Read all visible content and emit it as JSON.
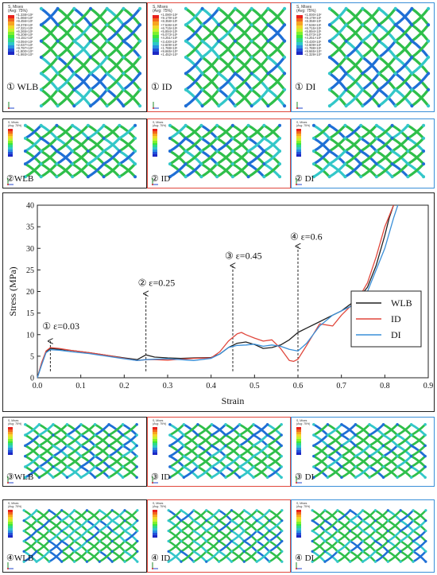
{
  "colors": {
    "black": "#222222",
    "red": "#e0473c",
    "blue": "#3a8fd8",
    "lattice_green": "#2fbf4a",
    "lattice_blue": "#1f6fd6",
    "lattice_cyan": "#33c7c9"
  },
  "contour_legend_colors": [
    "#e8221c",
    "#f2661f",
    "#f7a422",
    "#f2d52a",
    "#c9f02c",
    "#7ff02d",
    "#3de63b",
    "#2fd88a",
    "#2fc7c9",
    "#2b8fe0",
    "#2451d8",
    "#1d28c4"
  ],
  "rows": [
    {
      "id": "row1",
      "panels": [
        {
          "label": "① WLB",
          "legend_title": "S, Mises\n(Avg: 75%)",
          "legend_values": [
            "+1.338×10²",
            "+1.066×10²",
            "+9.456×10¹",
            "+8.378×10¹",
            "+7.321×10¹",
            "+6.265×10¹",
            "+5.208×10¹",
            "+4.151×10¹",
            "+3.094×10¹",
            "+2.037×10¹",
            "+9.797×10⁰",
            "+1.800×10⁰",
            "+1.993×10⁰"
          ]
        },
        {
          "label": "① ID",
          "legend_title": "S, Mises\n(Avg: 75%)",
          "legend_values": [
            "+1.090×10²",
            "+9.179×10¹",
            "+8.358×10¹",
            "+7.536×10¹",
            "+6.715×10¹",
            "+5.894×10¹",
            "+5.073×10¹",
            "+4.251×10¹",
            "+3.430×10¹",
            "+2.609×10¹",
            "+1.788×10¹",
            "+9.665×10⁰",
            "+1.452×10⁰"
          ]
        },
        {
          "label": "① DI",
          "legend_title": "S, Mises\n(Avg: 75%)",
          "legend_values": [
            "+1.000×10²",
            "+9.179×10¹",
            "+8.358×10¹",
            "+7.536×10¹",
            "+6.715×10¹",
            "+5.894×10¹",
            "+5.073×10¹",
            "+4.251×10¹",
            "+3.430×10¹",
            "+2.609×10¹",
            "+1.788×10¹",
            "+9.665×10⁰",
            "+1.329×10⁰"
          ]
        }
      ]
    },
    {
      "id": "row2",
      "panels": [
        {
          "label": "②WLB",
          "legend_title": "S, Mises\n(Avg: 75%)"
        },
        {
          "label": "② ID",
          "legend_title": "S, Mises\n(Avg: 75%)"
        },
        {
          "label": "② DI",
          "legend_title": "S, Mises\n(Avg: 75%)"
        }
      ]
    },
    {
      "id": "row3",
      "panels": [
        {
          "label": "③WLB",
          "legend_title": "S, Mises\n(Avg: 75%)"
        },
        {
          "label": "③ ID",
          "legend_title": "S, Mises\n(Avg: 75%)"
        },
        {
          "label": "③ DI",
          "legend_title": "S, Mises\n(Avg: 75%)"
        }
      ]
    },
    {
      "id": "row4",
      "panels": [
        {
          "label": "④WLB",
          "legend_title": "S, Mises\n(Avg: 75%)"
        },
        {
          "label": "④ ID",
          "legend_title": "S, Mises\n(Avg: 75%)"
        },
        {
          "label": "④ DI",
          "legend_title": "S, Mises\n(Avg: 75%)"
        }
      ]
    }
  ],
  "chart_data": {
    "type": "line",
    "xlabel": "Strain",
    "ylabel": "Stress (MPa)",
    "xlim": [
      0,
      0.9
    ],
    "ylim": [
      0,
      40
    ],
    "xticks": [
      0.0,
      0.1,
      0.2,
      0.3,
      0.4,
      0.5,
      0.6,
      0.7,
      0.8,
      0.9
    ],
    "xtick_labels": [
      "0.0",
      "0.1",
      "0.2",
      "0.3",
      "0.4",
      "0.5",
      "0.6",
      "0.7",
      "0.8",
      "0.9"
    ],
    "yticks": [
      0,
      5,
      10,
      15,
      20,
      25,
      30,
      35,
      40
    ],
    "ytick_labels": [
      "0",
      "5",
      "10",
      "15",
      "20",
      "25",
      "30",
      "35",
      "40"
    ],
    "grid": false,
    "legend_position": "right-middle",
    "annotations": [
      {
        "text": "① ε=0.03",
        "x": 0.03
      },
      {
        "text": "② ε=0.25",
        "x": 0.25
      },
      {
        "text": "③ ε=0.45",
        "x": 0.45
      },
      {
        "text": "④ ε=0.6",
        "x": 0.6
      }
    ],
    "series": [
      {
        "name": "WLB",
        "color": "#222222",
        "x": [
          0.0,
          0.01,
          0.02,
          0.03,
          0.05,
          0.08,
          0.12,
          0.16,
          0.2,
          0.23,
          0.25,
          0.27,
          0.3,
          0.33,
          0.36,
          0.4,
          0.42,
          0.44,
          0.46,
          0.48,
          0.5,
          0.52,
          0.54,
          0.56,
          0.58,
          0.6,
          0.62,
          0.65,
          0.68,
          0.7,
          0.72,
          0.74,
          0.76,
          0.78,
          0.8,
          0.81,
          0.82
        ],
        "y": [
          0.0,
          3.5,
          6.0,
          6.8,
          6.6,
          6.3,
          5.8,
          5.2,
          4.6,
          4.2,
          5.3,
          4.8,
          4.6,
          4.5,
          4.6,
          4.7,
          5.5,
          7.0,
          8.0,
          8.3,
          7.7,
          6.8,
          7.0,
          7.6,
          8.8,
          10.5,
          11.5,
          13.0,
          14.5,
          15.5,
          17.0,
          18.5,
          21.0,
          26.0,
          33.0,
          37.0,
          40.0
        ]
      },
      {
        "name": "ID",
        "color": "#e0473c",
        "x": [
          0.0,
          0.01,
          0.02,
          0.03,
          0.05,
          0.08,
          0.12,
          0.16,
          0.2,
          0.23,
          0.25,
          0.27,
          0.3,
          0.33,
          0.36,
          0.4,
          0.42,
          0.44,
          0.46,
          0.47,
          0.48,
          0.5,
          0.52,
          0.54,
          0.56,
          0.58,
          0.59,
          0.6,
          0.62,
          0.65,
          0.68,
          0.7,
          0.72,
          0.74,
          0.76,
          0.78,
          0.8,
          0.82
        ],
        "y": [
          0.0,
          3.5,
          6.2,
          7.0,
          6.8,
          6.3,
          5.8,
          5.2,
          4.5,
          4.0,
          4.2,
          4.2,
          4.1,
          4.3,
          4.5,
          4.6,
          6.0,
          8.5,
          10.2,
          10.5,
          10.0,
          9.2,
          8.5,
          8.8,
          6.8,
          4.0,
          3.8,
          4.3,
          7.5,
          12.5,
          12.0,
          14.5,
          16.5,
          18.5,
          22.0,
          28.0,
          35.0,
          40.0
        ]
      },
      {
        "name": "DI",
        "color": "#3a8fd8",
        "x": [
          0.0,
          0.01,
          0.02,
          0.03,
          0.05,
          0.08,
          0.12,
          0.16,
          0.2,
          0.23,
          0.25,
          0.27,
          0.3,
          0.33,
          0.36,
          0.4,
          0.42,
          0.44,
          0.46,
          0.48,
          0.5,
          0.52,
          0.54,
          0.56,
          0.58,
          0.6,
          0.62,
          0.65,
          0.68,
          0.7,
          0.72,
          0.74,
          0.76,
          0.78,
          0.8,
          0.82,
          0.83
        ],
        "y": [
          0.0,
          3.0,
          5.8,
          6.5,
          6.4,
          6.0,
          5.6,
          5.0,
          4.4,
          4.0,
          4.2,
          4.3,
          4.4,
          4.2,
          4.0,
          4.5,
          5.5,
          7.0,
          7.5,
          7.6,
          7.8,
          7.3,
          7.6,
          7.3,
          6.6,
          6.2,
          8.0,
          12.0,
          14.5,
          15.5,
          16.5,
          17.5,
          20.0,
          25.0,
          30.0,
          37.0,
          40.0
        ]
      }
    ]
  }
}
